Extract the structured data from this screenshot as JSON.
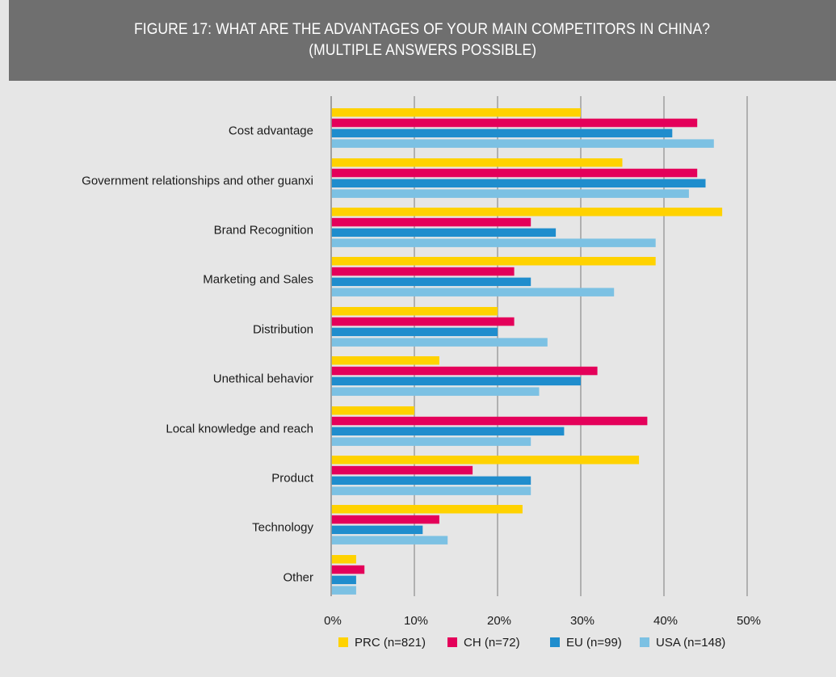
{
  "header": {
    "title_line1": "FIGURE 17: WHAT ARE THE ADVANTAGES OF YOUR MAIN COMPETITORS IN CHINA?",
    "title_line2": "(MULTIPLE ANSWERS POSSIBLE)"
  },
  "colors": {
    "header_bg": "#6f6f6f",
    "panel_bg": "#e6e6e6",
    "grid": "#9a9a9a"
  },
  "chart_data": {
    "type": "bar",
    "orientation": "horizontal",
    "title": "FIGURE 17: WHAT ARE THE ADVANTAGES OF YOUR MAIN COMPETITORS IN CHINA? (MULTIPLE ANSWERS POSSIBLE)",
    "xlabel": "",
    "ylabel": "",
    "xlim": [
      0,
      50
    ],
    "x_ticks": [
      "0%",
      "10%",
      "20%",
      "30%",
      "40%",
      "50%"
    ],
    "grid": true,
    "legend_position": "bottom",
    "categories": [
      "Cost advantage",
      "Government relationships and other guanxi",
      "Brand Recognition",
      "Marketing and Sales",
      "Distribution",
      "Unethical behavior",
      "Local knowledge and reach",
      "Product",
      "Technology",
      "Other"
    ],
    "series": [
      {
        "name": "PRC (n=821)",
        "color": "#ffd200",
        "values": [
          30,
          35,
          47,
          39,
          20,
          13,
          10,
          37,
          23,
          3
        ]
      },
      {
        "name": "CH (n=72)",
        "color": "#e4005a",
        "values": [
          44,
          44,
          24,
          22,
          22,
          32,
          38,
          17,
          13,
          4
        ]
      },
      {
        "name": "EU (n=99)",
        "color": "#1f8dcd",
        "values": [
          41,
          45,
          27,
          24,
          20,
          30,
          28,
          24,
          11,
          3
        ]
      },
      {
        "name": "USA (n=148)",
        "color": "#7cc1e3",
        "values": [
          46,
          43,
          39,
          34,
          26,
          25,
          24,
          24,
          14,
          3
        ]
      }
    ]
  }
}
